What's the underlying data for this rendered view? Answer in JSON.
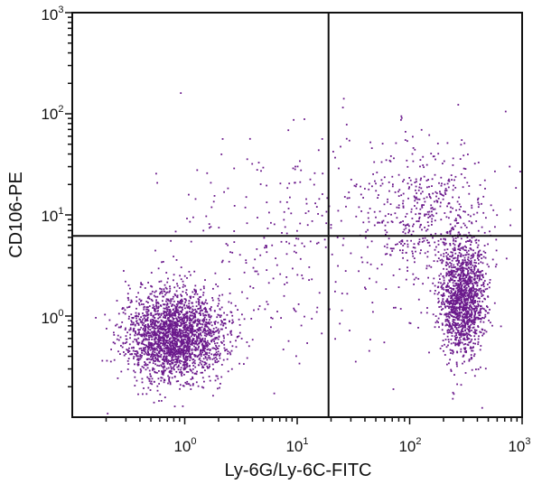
{
  "chart_data": {
    "type": "scatter",
    "title": "",
    "xlabel": "Ly-6G/Ly-6C-FITC",
    "ylabel": "CD106-PE",
    "x_scale": "log",
    "y_scale": "log",
    "xlim": [
      0.1,
      1000
    ],
    "ylim": [
      0.1,
      1000
    ],
    "x_ticks": [
      {
        "base": "10",
        "exp": "0",
        "value": 1
      },
      {
        "base": "10",
        "exp": "1",
        "value": 10
      },
      {
        "base": "10",
        "exp": "2",
        "value": 100
      },
      {
        "base": "10",
        "exp": "3",
        "value": 1000
      }
    ],
    "y_ticks": [
      {
        "base": "10",
        "exp": "0",
        "value": 1
      },
      {
        "base": "10",
        "exp": "1",
        "value": 10
      },
      {
        "base": "10",
        "exp": "2",
        "value": 100
      },
      {
        "base": "10",
        "exp": "3",
        "value": 1000
      }
    ],
    "quadrant_gates": {
      "x": 19,
      "y": 6.2
    },
    "grid": false,
    "point_color": "#6b1a8c",
    "populations": [
      {
        "center_x": 0.8,
        "center_y": 0.65,
        "count": 2300
      },
      {
        "center_x": 290,
        "center_y": 1.5,
        "count": 1400
      },
      {
        "center_x": 150,
        "center_y": 10,
        "count": 500
      },
      {
        "center_x": 10,
        "center_y": 5,
        "count": 300
      }
    ]
  }
}
